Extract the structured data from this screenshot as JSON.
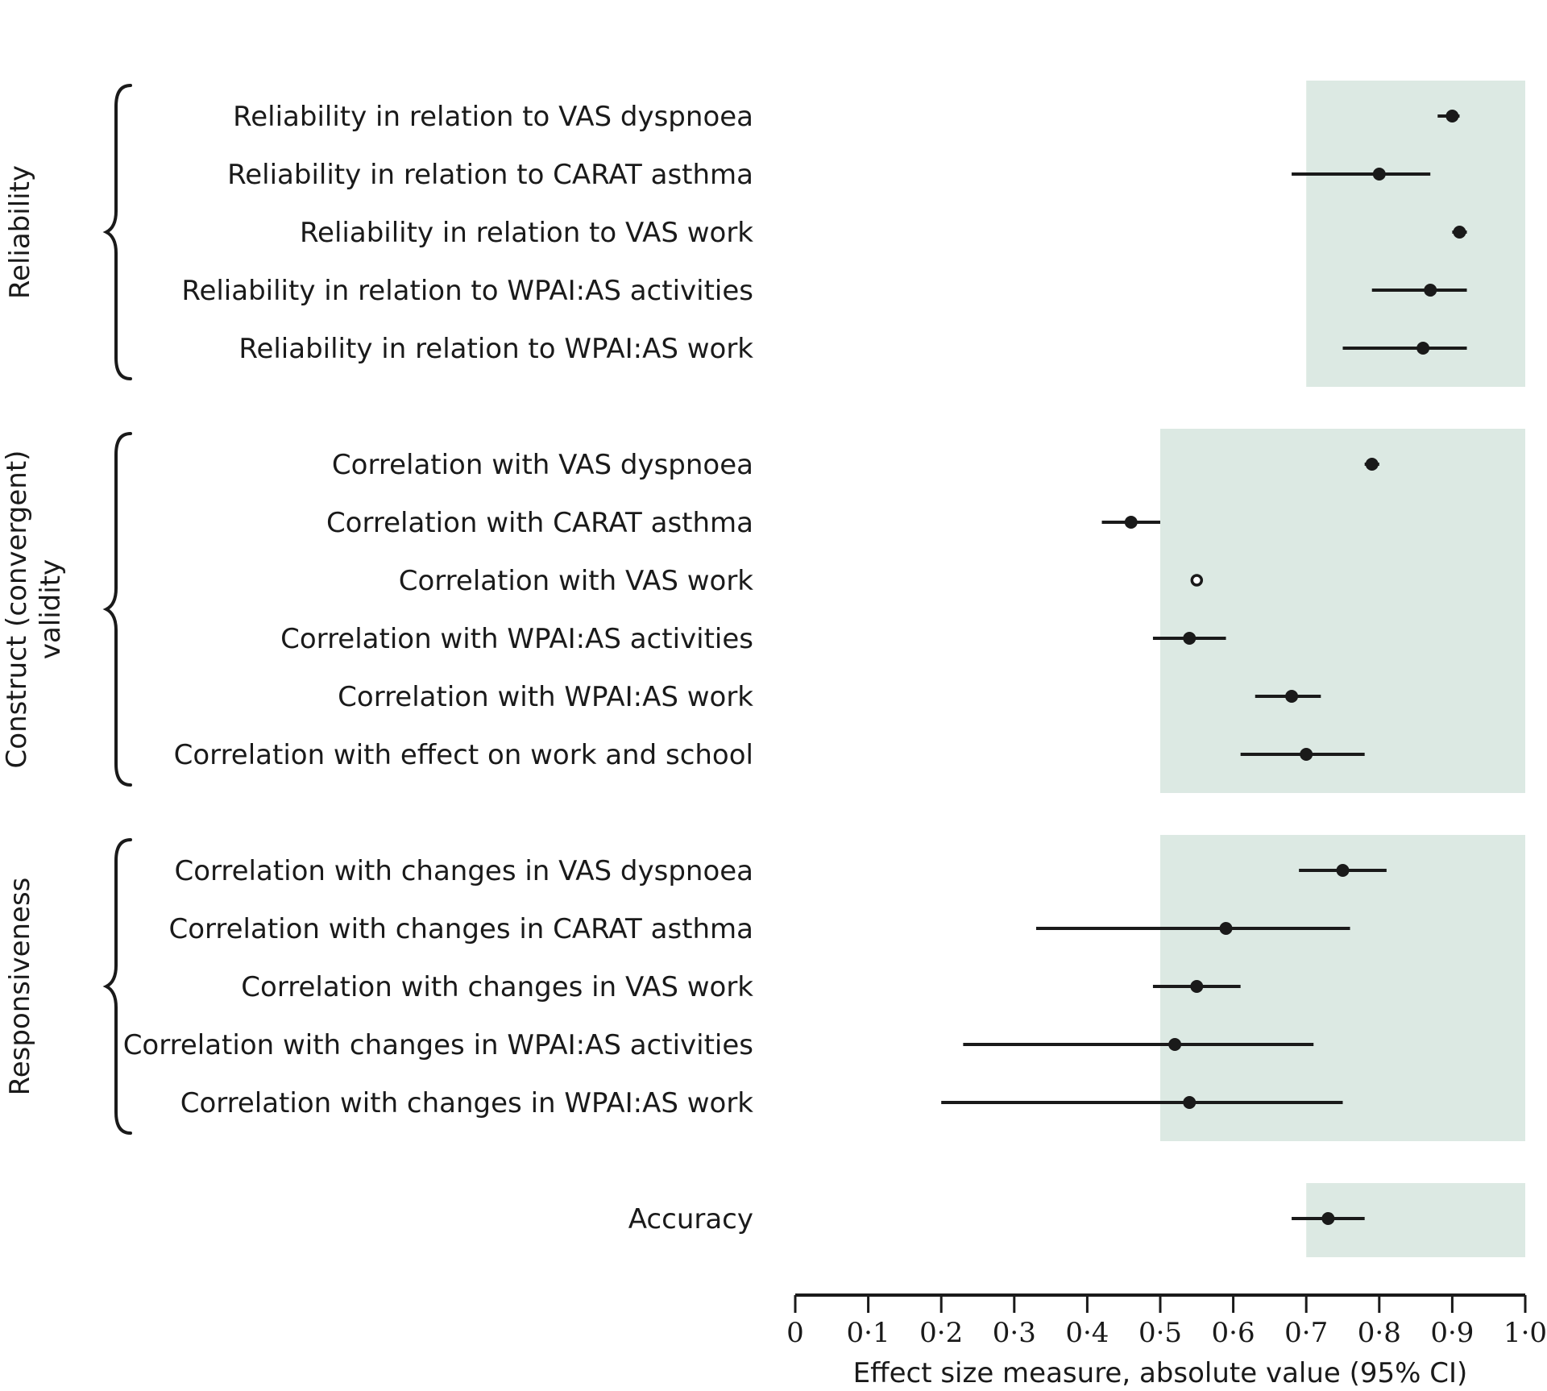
{
  "chart_data": {
    "type": "forest",
    "xlabel": "Effect size measure, absolute value (95% CI)",
    "xlim": [
      0,
      1.0
    ],
    "ticks": [
      {
        "value": 0,
        "label": "0"
      },
      {
        "value": 0.1,
        "label": "0·1"
      },
      {
        "value": 0.2,
        "label": "0·2"
      },
      {
        "value": 0.3,
        "label": "0·3"
      },
      {
        "value": 0.4,
        "label": "0·4"
      },
      {
        "value": 0.5,
        "label": "0·5"
      },
      {
        "value": 0.6,
        "label": "0·6"
      },
      {
        "value": 0.7,
        "label": "0·7"
      },
      {
        "value": 0.8,
        "label": "0·8"
      },
      {
        "value": 0.9,
        "label": "0·9"
      },
      {
        "value": 1.0,
        "label": "1·0"
      }
    ],
    "groups": [
      {
        "name": "Reliability",
        "name_lines": [
          "Reliability"
        ],
        "threshold": 0.7,
        "rows": [
          {
            "label": "Reliability in relation to VAS dyspnoea",
            "estimate": 0.9,
            "lower": 0.88,
            "upper": 0.91,
            "filled": true
          },
          {
            "label": "Reliability in relation to CARAT asthma",
            "estimate": 0.8,
            "lower": 0.68,
            "upper": 0.87,
            "filled": true
          },
          {
            "label": "Reliability in relation to VAS work",
            "estimate": 0.91,
            "lower": 0.9,
            "upper": 0.92,
            "filled": true
          },
          {
            "label": "Reliability in relation to WPAI:AS activities",
            "estimate": 0.87,
            "lower": 0.79,
            "upper": 0.92,
            "filled": true
          },
          {
            "label": "Reliability in relation to WPAI:AS work",
            "estimate": 0.86,
            "lower": 0.75,
            "upper": 0.92,
            "filled": true
          }
        ]
      },
      {
        "name": "Construct (convergent) validity",
        "name_lines": [
          "Construct (convergent)",
          "validity"
        ],
        "threshold": 0.5,
        "rows": [
          {
            "label": "Correlation with VAS dyspnoea",
            "estimate": 0.79,
            "lower": 0.78,
            "upper": 0.8,
            "filled": true
          },
          {
            "label": "Correlation with CARAT asthma",
            "estimate": 0.46,
            "lower": 0.42,
            "upper": 0.5,
            "filled": true
          },
          {
            "label": "Correlation with VAS work",
            "estimate": 0.55,
            "lower": 0.55,
            "upper": 0.55,
            "filled": false
          },
          {
            "label": "Correlation with WPAI:AS activities",
            "estimate": 0.54,
            "lower": 0.49,
            "upper": 0.59,
            "filled": true
          },
          {
            "label": "Correlation with WPAI:AS work",
            "estimate": 0.68,
            "lower": 0.63,
            "upper": 0.72,
            "filled": true
          },
          {
            "label": "Correlation with effect on work and school",
            "estimate": 0.7,
            "lower": 0.61,
            "upper": 0.78,
            "filled": true
          }
        ]
      },
      {
        "name": "Responsiveness",
        "name_lines": [
          "Responsiveness"
        ],
        "threshold": 0.5,
        "rows": [
          {
            "label": "Correlation with changes in VAS dyspnoea",
            "estimate": 0.75,
            "lower": 0.69,
            "upper": 0.81,
            "filled": true
          },
          {
            "label": "Correlation with changes in CARAT asthma",
            "estimate": 0.59,
            "lower": 0.33,
            "upper": 0.76,
            "filled": true
          },
          {
            "label": "Correlation with changes in VAS work",
            "estimate": 0.55,
            "lower": 0.49,
            "upper": 0.61,
            "filled": true
          },
          {
            "label": "Correlation with changes in WPAI:AS activities",
            "estimate": 0.52,
            "lower": 0.23,
            "upper": 0.71,
            "filled": true
          },
          {
            "label": "Correlation with changes in WPAI:AS work",
            "estimate": 0.54,
            "lower": 0.2,
            "upper": 0.75,
            "filled": true
          }
        ]
      },
      {
        "name": "",
        "name_lines": [],
        "threshold": 0.7,
        "rows": [
          {
            "label": "Accuracy",
            "estimate": 0.73,
            "lower": 0.68,
            "upper": 0.78,
            "filled": true
          }
        ]
      }
    ],
    "colors": {
      "shade": "#dce9e3",
      "ink": "#1a1a1a",
      "background": "#ffffff"
    }
  }
}
